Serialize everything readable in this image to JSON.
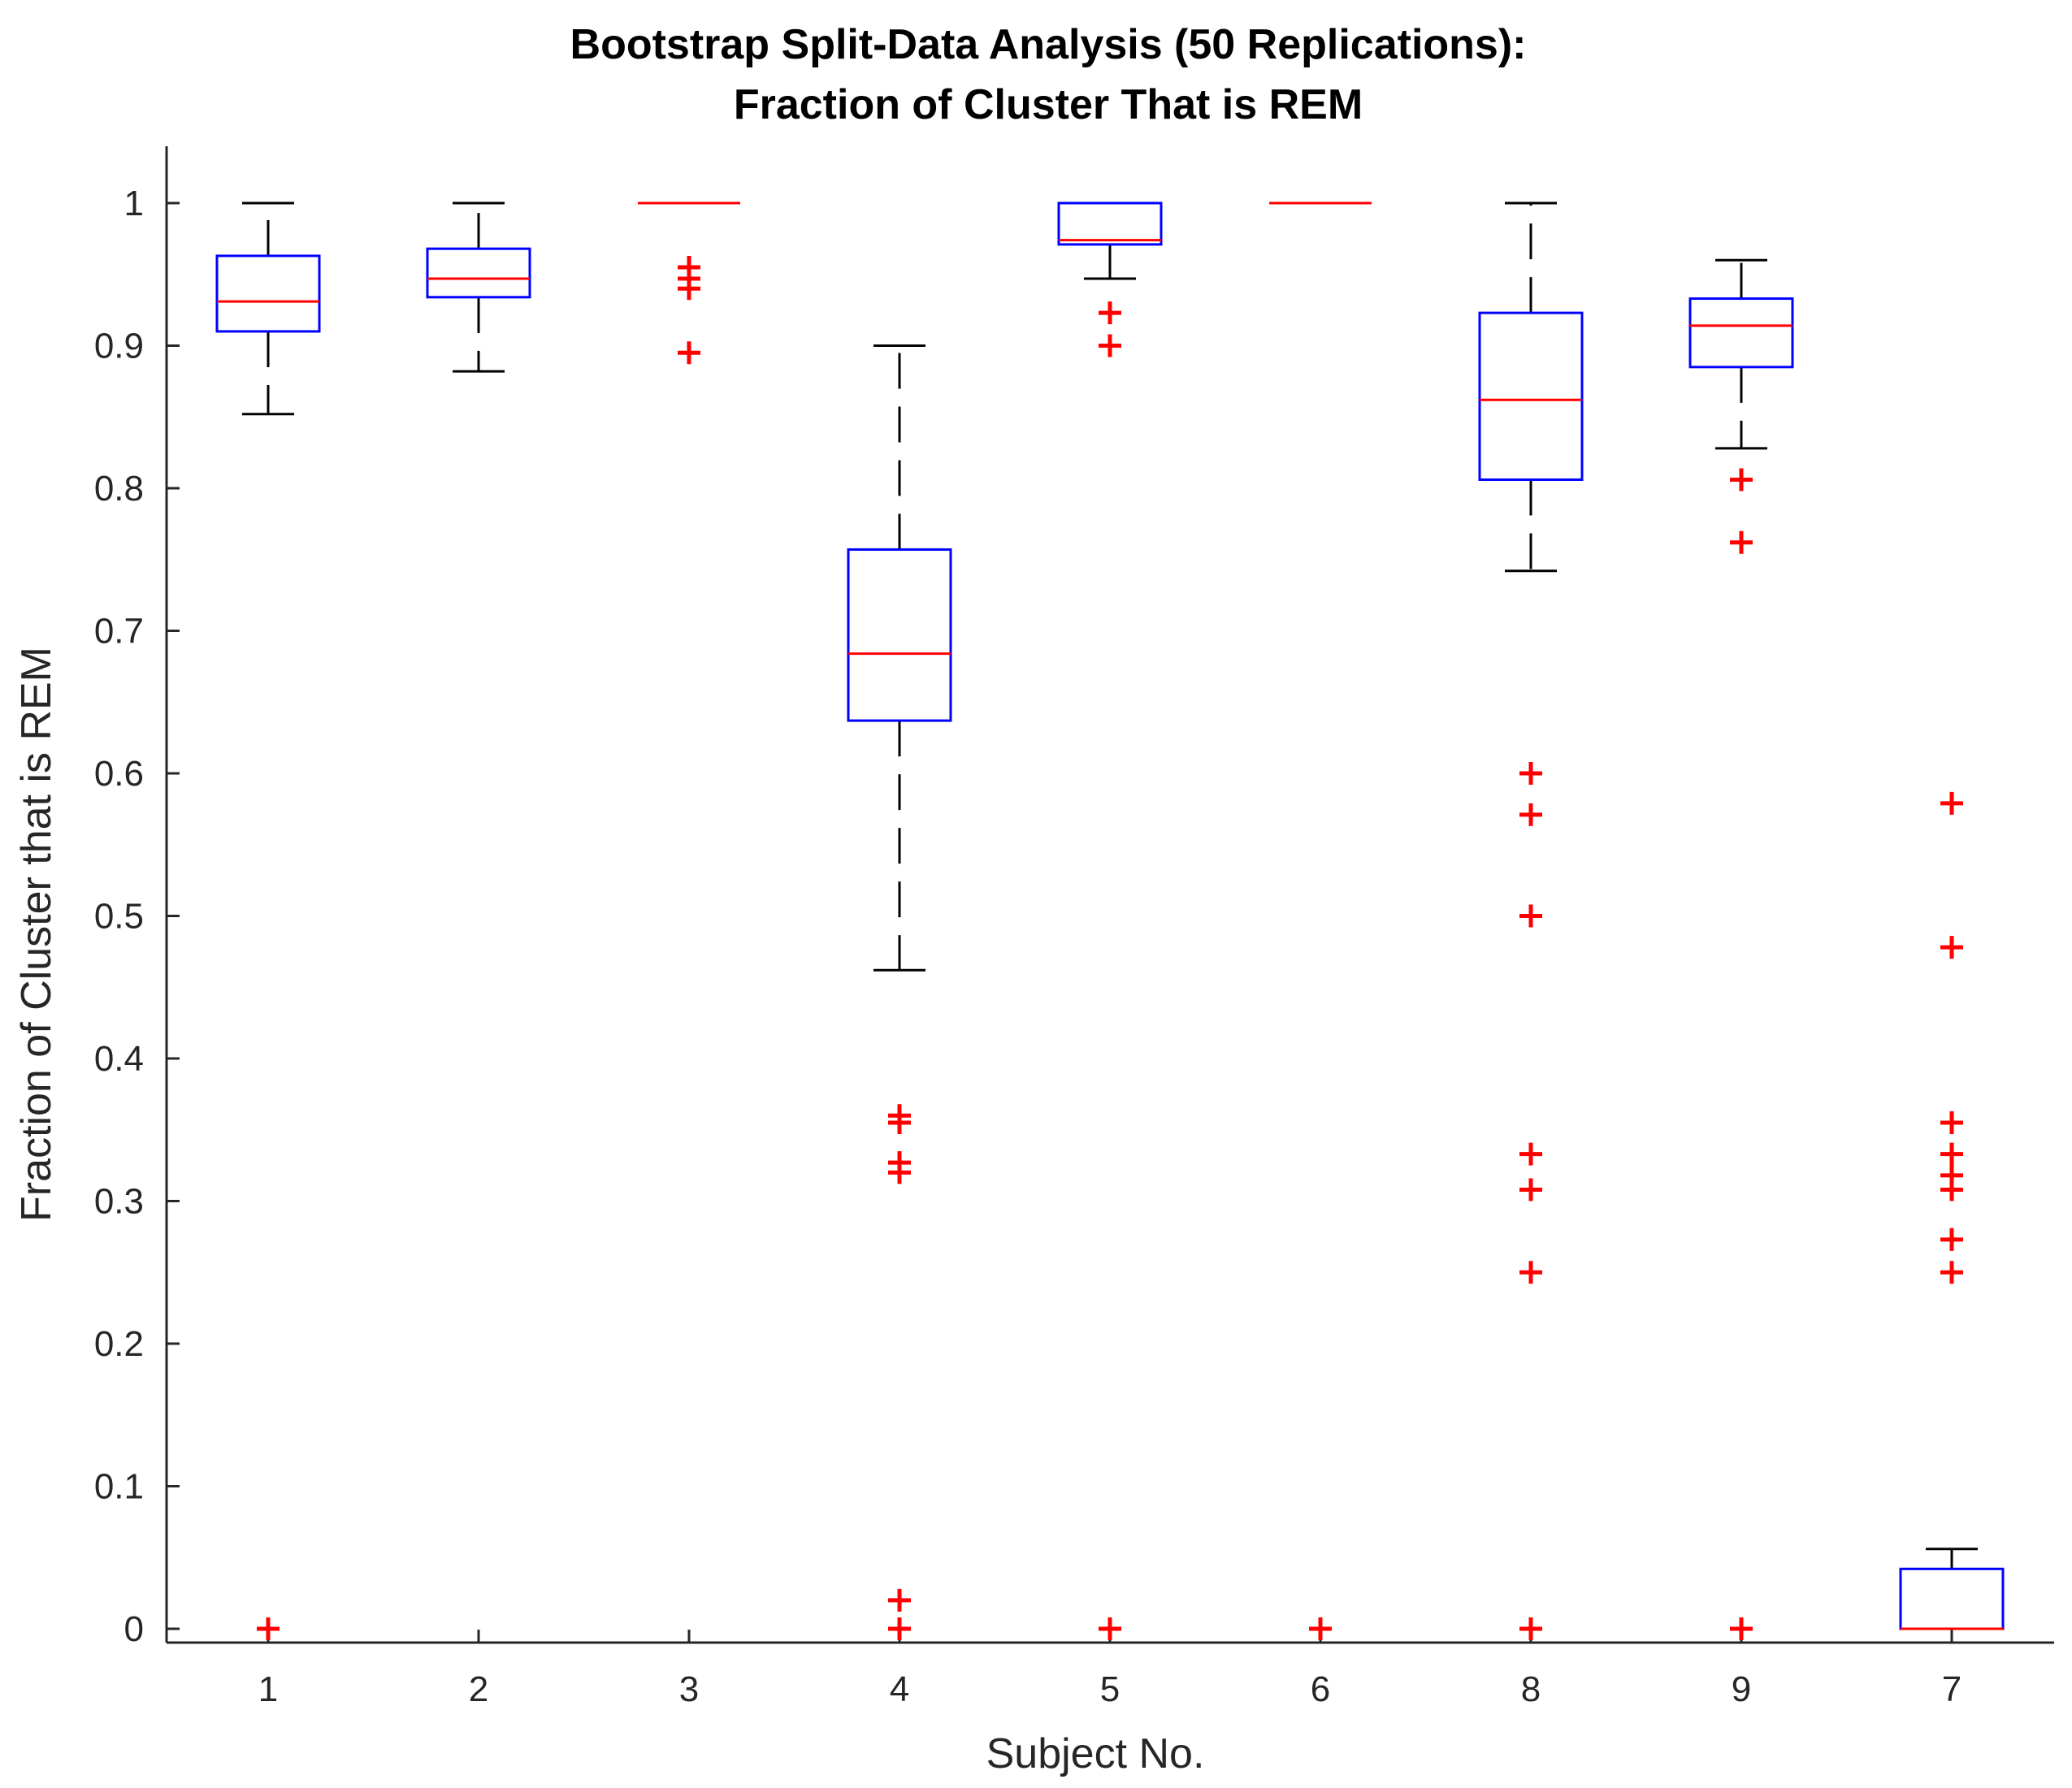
{
  "chart_data": {
    "type": "box",
    "title": [
      "Bootstrap Split-Data Analysis (50 Replications):",
      "Fraction of Cluster That is REM"
    ],
    "xlabel": "Subject No.",
    "ylabel": "Fraction of Cluster that is REM",
    "ylim": [
      -0.01,
      1.04
    ],
    "yticks": [
      0,
      0.1,
      0.2,
      0.3,
      0.4,
      0.5,
      0.6,
      0.7,
      0.8,
      0.9,
      1
    ],
    "ytick_labels": [
      "0",
      "0.1",
      "0.2",
      "0.3",
      "0.4",
      "0.5",
      "0.6",
      "0.7",
      "0.8",
      "0.9",
      "1"
    ],
    "categories": [
      "1",
      "2",
      "3",
      "4",
      "5",
      "6",
      "8",
      "9",
      "7"
    ],
    "boxes": [
      {
        "label": "1",
        "whisker_low": 0.852,
        "q1": 0.91,
        "median": 0.931,
        "q3": 0.963,
        "whisker_high": 1.0,
        "outliers": [
          0
        ]
      },
      {
        "label": "2",
        "whisker_low": 0.882,
        "q1": 0.934,
        "median": 0.947,
        "q3": 0.968,
        "whisker_high": 1.0,
        "outliers": []
      },
      {
        "label": "3",
        "whisker_low": 1.0,
        "q1": 1.0,
        "median": 1.0,
        "q3": 1.0,
        "whisker_high": 1.0,
        "outliers": [
          0.955,
          0.947,
          0.94,
          0.895
        ]
      },
      {
        "label": "4",
        "whisker_low": 0.462,
        "q1": 0.637,
        "median": 0.684,
        "q3": 0.757,
        "whisker_high": 0.9,
        "outliers": [
          0.36,
          0.355,
          0.327,
          0.32,
          0.02,
          0
        ]
      },
      {
        "label": "5",
        "whisker_low": 0.947,
        "q1": 0.971,
        "median": 0.974,
        "q3": 1.0,
        "whisker_high": 1.0,
        "outliers": [
          0.923,
          0.9,
          0
        ]
      },
      {
        "label": "6",
        "whisker_low": 1.0,
        "q1": 1.0,
        "median": 1.0,
        "q3": 1.0,
        "whisker_high": 1.0,
        "outliers": [
          0
        ]
      },
      {
        "label": "8",
        "whisker_low": 0.742,
        "q1": 0.806,
        "median": 0.862,
        "q3": 0.923,
        "whisker_high": 1.0,
        "outliers": [
          0.6,
          0.571,
          0.5,
          0.333,
          0.308,
          0.25,
          0
        ]
      },
      {
        "label": "9",
        "whisker_low": 0.828,
        "q1": 0.885,
        "median": 0.914,
        "q3": 0.933,
        "whisker_high": 0.96,
        "outliers": [
          0.806,
          0.762,
          0
        ]
      },
      {
        "label": "7",
        "whisker_low": 0,
        "q1": 0,
        "median": 0,
        "q3": 0.042,
        "whisker_high": 0.056,
        "outliers": [
          0.579,
          0.478,
          0.355,
          0.333,
          0.318,
          0.308,
          0.273,
          0.25
        ]
      }
    ],
    "colors": {
      "box": "#0000ff",
      "median": "#ff0000",
      "whisker": "#000000",
      "outlier": "#ff0000",
      "axis": "#262626"
    }
  }
}
